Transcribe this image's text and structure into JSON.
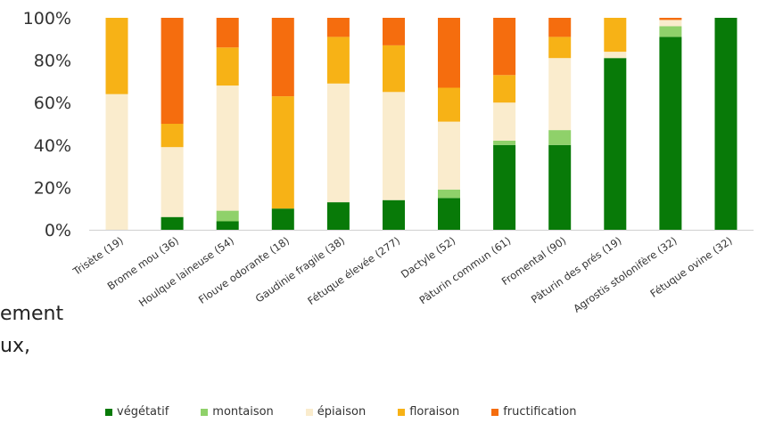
{
  "chart_data": {
    "type": "bar",
    "stacked": true,
    "title": "",
    "xlabel": "",
    "ylabel": "",
    "ylim": [
      0,
      100
    ],
    "yticks": [
      "0%",
      "20%",
      "40%",
      "60%",
      "80%",
      "100%"
    ],
    "grid": false,
    "legend_position": "bottom",
    "categories": [
      "Trisète (19)",
      "Brome mou (36)",
      "Houlque laineuse (54)",
      "Flouve odorante (18)",
      "Gaudinie fragile (38)",
      "Fétuque élevée (277)",
      "Dactyle (52)",
      "Pâturin commun (61)",
      "Fromental (90)",
      "Pâturin des prés (19)",
      "Agrostis stolonifère (32)",
      "Fétuque ovine (32)"
    ],
    "series": [
      {
        "name": "végétatif",
        "color": "#087a08",
        "values": [
          0,
          6,
          4,
          10,
          13,
          14,
          15,
          40,
          40,
          81,
          91,
          100
        ]
      },
      {
        "name": "montaison",
        "color": "#8fd16a",
        "values": [
          0,
          0,
          5,
          0,
          0,
          0,
          4,
          2,
          7,
          0,
          5,
          0
        ]
      },
      {
        "name": "épiaison",
        "color": "#faeccd",
        "values": [
          64,
          33,
          59,
          0,
          56,
          51,
          32,
          18,
          34,
          3,
          3,
          0
        ]
      },
      {
        "name": "floraison",
        "color": "#f7b216",
        "values": [
          36,
          11,
          18,
          53,
          22,
          22,
          16,
          13,
          10,
          16,
          0,
          0
        ]
      },
      {
        "name": "fructification",
        "color": "#f56d0e",
        "values": [
          0,
          50,
          14,
          37,
          9,
          13,
          33,
          27,
          9,
          0,
          1,
          0
        ]
      }
    ]
  },
  "side_text": {
    "line1": "ement",
    "line2": "ux,"
  }
}
